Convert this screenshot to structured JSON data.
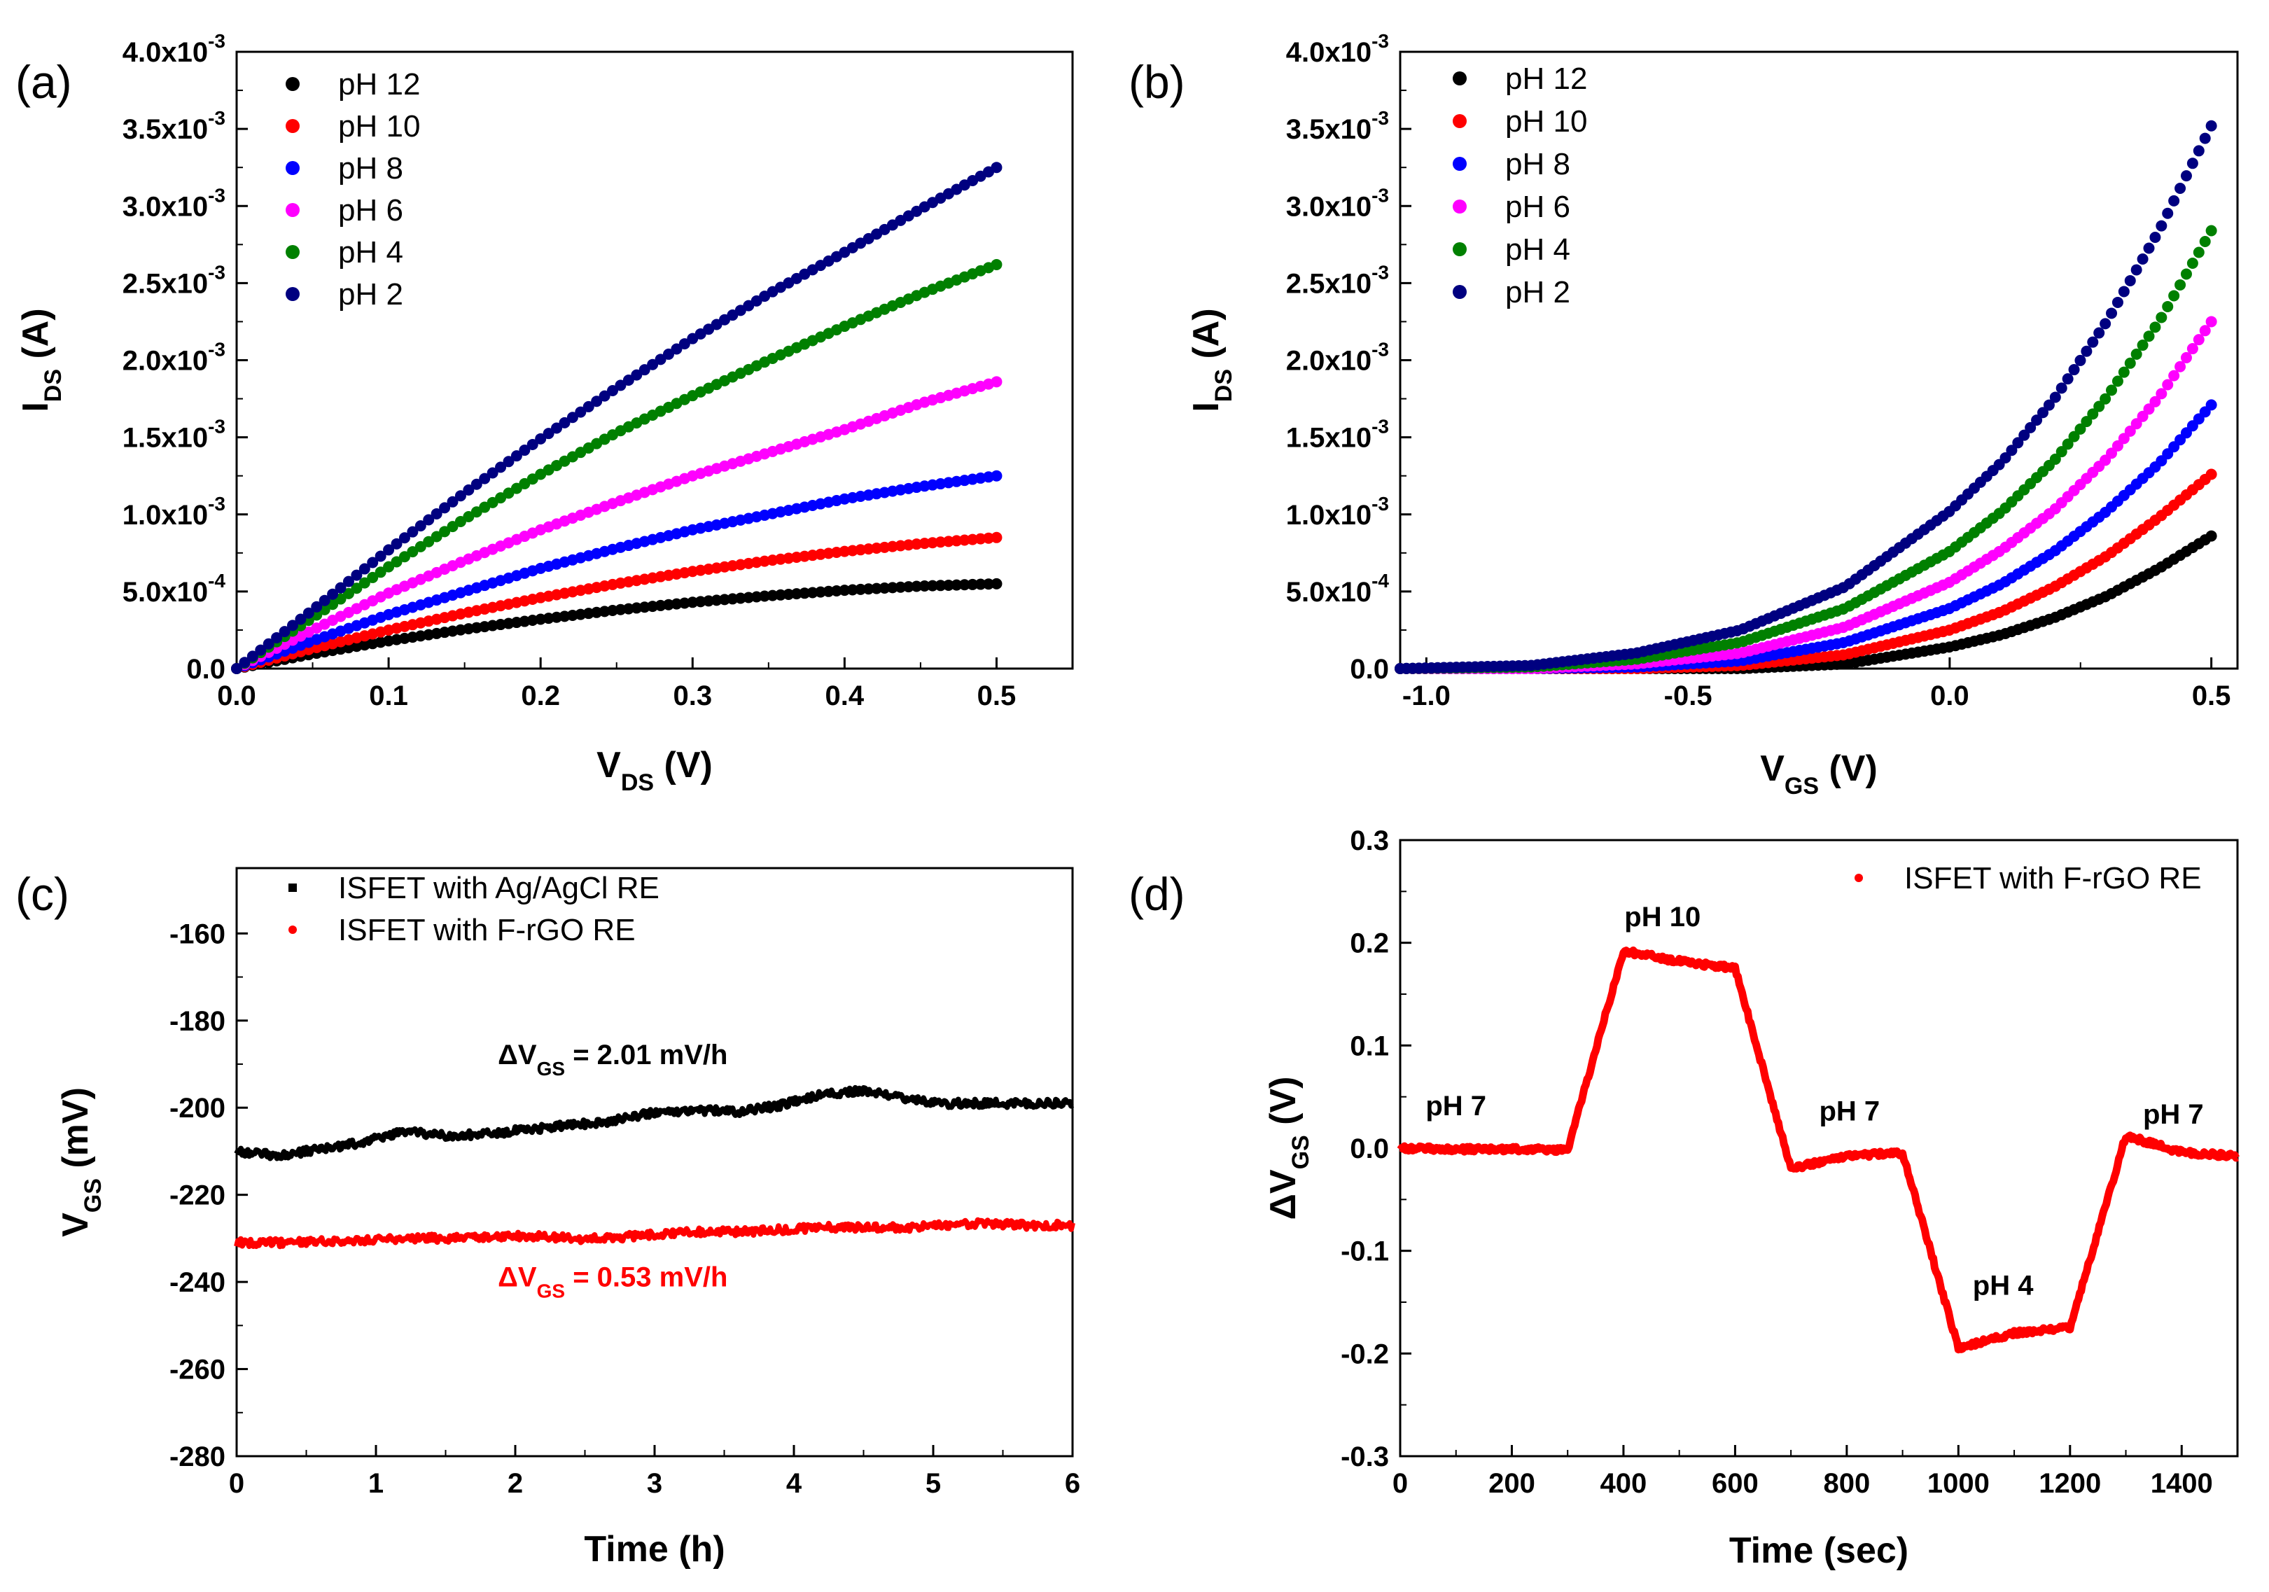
{
  "chart_data": [
    {
      "id": "a",
      "type": "scatter",
      "panel_label": "(a)",
      "xlabel": {
        "main": "V",
        "sub": "DS",
        "unit": " (V)"
      },
      "ylabel": {
        "main": "I",
        "sub": "DS",
        "unit": " (A)"
      },
      "xlim": [
        0.0,
        0.55
      ],
      "ylim": [
        0.0,
        0.004
      ],
      "x_ticks": [
        0.0,
        0.1,
        0.2,
        0.3,
        0.4,
        0.5
      ],
      "x_tick_labels": [
        "0.0",
        "0.1",
        "0.2",
        "0.3",
        "0.4",
        "0.5"
      ],
      "y_ticks": [
        0.0,
        0.0005,
        0.001,
        0.0015,
        0.002,
        0.0025,
        0.003,
        0.0035,
        0.004
      ],
      "y_tick_labels": [
        {
          "base": "0.0",
          "exp": ""
        },
        {
          "base": "5.0x10",
          "exp": "-4"
        },
        {
          "base": "1.0x10",
          "exp": "-3"
        },
        {
          "base": "1.5x10",
          "exp": "-3"
        },
        {
          "base": "2.0x10",
          "exp": "-3"
        },
        {
          "base": "2.5x10",
          "exp": "-3"
        },
        {
          "base": "3.0x10",
          "exp": "-3"
        },
        {
          "base": "3.5x10",
          "exp": "-3"
        },
        {
          "base": "4.0x10",
          "exp": "-3"
        }
      ],
      "legend_position": "top-left",
      "series": [
        {
          "name": "pH 12",
          "color": "#000000",
          "x": [
            0,
            0.05,
            0.1,
            0.15,
            0.2,
            0.25,
            0.3,
            0.35,
            0.4,
            0.45,
            0.5
          ],
          "y": [
            0,
            9.5e-05,
            0.00018,
            0.000255,
            0.00032,
            0.00038,
            0.00043,
            0.000472,
            0.000508,
            0.000535,
            0.00055
          ]
        },
        {
          "name": "pH 10",
          "color": "#ff0000",
          "x": [
            0,
            0.05,
            0.1,
            0.15,
            0.2,
            0.25,
            0.3,
            0.35,
            0.4,
            0.45,
            0.5
          ],
          "y": [
            0,
            0.00013,
            0.00025,
            0.00036,
            0.00046,
            0.00055,
            0.00063,
            0.0007,
            0.00076,
            0.00081,
            0.00085
          ]
        },
        {
          "name": "pH 8",
          "color": "#0000ff",
          "x": [
            0,
            0.05,
            0.1,
            0.15,
            0.2,
            0.25,
            0.3,
            0.35,
            0.4,
            0.45,
            0.5
          ],
          "y": [
            0,
            0.00018,
            0.00035,
            0.0005,
            0.00065,
            0.00078,
            0.0009,
            0.001,
            0.0011,
            0.00118,
            0.00125
          ]
        },
        {
          "name": "pH 6",
          "color": "#ff00ff",
          "x": [
            0,
            0.05,
            0.1,
            0.15,
            0.2,
            0.25,
            0.3,
            0.35,
            0.4,
            0.45,
            0.5
          ],
          "y": [
            0,
            0.00025,
            0.00049,
            0.0007,
            0.0009,
            0.00108,
            0.00125,
            0.0014,
            0.00155,
            0.00172,
            0.00186
          ]
        },
        {
          "name": "pH 4",
          "color": "#008000",
          "x": [
            0,
            0.05,
            0.1,
            0.15,
            0.2,
            0.25,
            0.3,
            0.35,
            0.4,
            0.45,
            0.5
          ],
          "y": [
            0,
            0.00033,
            0.00066,
            0.00097,
            0.00126,
            0.00153,
            0.00177,
            0.002,
            0.00222,
            0.00243,
            0.00262
          ]
        },
        {
          "name": "pH 2",
          "color": "#000080",
          "x": [
            0,
            0.05,
            0.1,
            0.15,
            0.2,
            0.25,
            0.3,
            0.35,
            0.4,
            0.45,
            0.5
          ],
          "y": [
            0,
            0.00038,
            0.00077,
            0.00114,
            0.00149,
            0.00182,
            0.00214,
            0.00243,
            0.0027,
            0.00298,
            0.00325
          ]
        }
      ]
    },
    {
      "id": "b",
      "type": "scatter",
      "panel_label": "(b)",
      "xlabel": {
        "main": "V",
        "sub": "GS",
        "unit": " (V)"
      },
      "ylabel": {
        "main": "I",
        "sub": "DS",
        "unit": " (A)"
      },
      "xlim": [
        -1.05,
        0.55
      ],
      "ylim": [
        0.0,
        0.004
      ],
      "x_ticks": [
        -1.0,
        -0.5,
        0.0,
        0.5
      ],
      "x_tick_labels": [
        "-1.0",
        "-0.5",
        "0.0",
        "0.5"
      ],
      "y_ticks": [
        0.0,
        0.0005,
        0.001,
        0.0015,
        0.002,
        0.0025,
        0.003,
        0.0035,
        0.004
      ],
      "y_tick_labels": [
        {
          "base": "0.0",
          "exp": ""
        },
        {
          "base": "5.0x10",
          "exp": "-4"
        },
        {
          "base": "1.0x10",
          "exp": "-3"
        },
        {
          "base": "1.5x10",
          "exp": "-3"
        },
        {
          "base": "2.0x10",
          "exp": "-3"
        },
        {
          "base": "2.5x10",
          "exp": "-3"
        },
        {
          "base": "3.0x10",
          "exp": "-3"
        },
        {
          "base": "3.5x10",
          "exp": "-3"
        },
        {
          "base": "4.0x10",
          "exp": "-3"
        }
      ],
      "legend_position": "top-left",
      "series": [
        {
          "name": "pH 12",
          "color": "#000000",
          "x": [
            -1.05,
            -0.8,
            -0.6,
            -0.4,
            -0.2,
            0.0,
            0.1,
            0.2,
            0.3,
            0.4,
            0.5
          ],
          "y": [
            0,
            0,
            0,
            0,
            3e-05,
            0.00014,
            0.00022,
            0.00033,
            0.00047,
            0.00065,
            0.00086
          ]
        },
        {
          "name": "pH 10",
          "color": "#ff0000",
          "x": [
            -1.05,
            -0.8,
            -0.6,
            -0.4,
            -0.2,
            0.0,
            0.1,
            0.2,
            0.3,
            0.4,
            0.5
          ],
          "y": [
            0,
            0,
            0,
            2e-05,
            9e-05,
            0.00025,
            0.00037,
            0.00053,
            0.00073,
            0.00098,
            0.00126
          ]
        },
        {
          "name": "pH 8",
          "color": "#0000ff",
          "x": [
            -1.05,
            -0.8,
            -0.6,
            -0.4,
            -0.2,
            0.0,
            0.1,
            0.2,
            0.3,
            0.4,
            0.5
          ],
          "y": [
            0,
            0,
            1e-05,
            5e-05,
            0.00017,
            0.00039,
            0.00055,
            0.00076,
            0.00102,
            0.00133,
            0.00171
          ]
        },
        {
          "name": "pH 6",
          "color": "#ff00ff",
          "x": [
            -1.05,
            -0.8,
            -0.6,
            -0.4,
            -0.2,
            0.0,
            0.1,
            0.2,
            0.3,
            0.4,
            0.5
          ],
          "y": [
            0,
            0,
            3e-05,
            0.0001,
            0.00027,
            0.00056,
            0.00077,
            0.00103,
            0.00136,
            0.00176,
            0.00225
          ]
        },
        {
          "name": "pH 4",
          "color": "#008000",
          "x": [
            -1.05,
            -0.8,
            -0.6,
            -0.4,
            -0.2,
            0.0,
            0.1,
            0.2,
            0.3,
            0.4,
            0.5
          ],
          "y": [
            0,
            1e-05,
            6e-05,
            0.00017,
            0.00039,
            0.00076,
            0.00102,
            0.00135,
            0.00176,
            0.00225,
            0.00284
          ]
        },
        {
          "name": "pH 2",
          "color": "#000080",
          "x": [
            -1.05,
            -0.8,
            -0.6,
            -0.4,
            -0.2,
            0.0,
            0.1,
            0.2,
            0.3,
            0.4,
            0.5
          ],
          "y": [
            0,
            2e-05,
            0.0001,
            0.00025,
            0.00053,
            0.00102,
            0.00134,
            0.00175,
            0.00225,
            0.00284,
            0.00352
          ]
        }
      ]
    },
    {
      "id": "c",
      "type": "line",
      "panel_label": "(c)",
      "xlabel": {
        "main": "Time (h)",
        "sub": "",
        "unit": ""
      },
      "ylabel": {
        "main": "V",
        "sub": "GS",
        "unit": " (mV)"
      },
      "xlim": [
        0,
        6
      ],
      "ylim": [
        -280,
        -145
      ],
      "x_ticks": [
        0,
        1,
        2,
        3,
        4,
        5,
        6
      ],
      "x_tick_labels": [
        "0",
        "1",
        "2",
        "3",
        "4",
        "5",
        "6"
      ],
      "y_ticks": [
        -280,
        -260,
        -240,
        -220,
        -200,
        -180,
        -160
      ],
      "y_tick_labels": [
        {
          "base": "-280",
          "exp": ""
        },
        {
          "base": "-260",
          "exp": ""
        },
        {
          "base": "-240",
          "exp": ""
        },
        {
          "base": "-220",
          "exp": ""
        },
        {
          "base": "-200",
          "exp": ""
        },
        {
          "base": "-180",
          "exp": ""
        },
        {
          "base": "-160",
          "exp": ""
        }
      ],
      "legend_position": "top-left",
      "series": [
        {
          "name": "ISFET with Ag/AgCl RE",
          "color": "#000000",
          "marker": "square",
          "x": [
            0,
            0.3,
            0.6,
            0.9,
            1.2,
            1.5,
            1.8,
            2.1,
            2.4,
            2.7,
            3.0,
            3.3,
            3.6,
            3.9,
            4.2,
            4.5,
            4.8,
            5.1,
            5.4,
            5.7,
            6.0
          ],
          "y": [
            -210,
            -211,
            -209.5,
            -208,
            -205.5,
            -206.5,
            -206,
            -205,
            -204,
            -203,
            -201,
            -200.5,
            -201,
            -199.5,
            -197,
            -196,
            -198,
            -199,
            -199,
            -199,
            -199
          ]
        },
        {
          "name": "ISFET with F-rGO RE",
          "color": "#ff0000",
          "marker": "circle",
          "x": [
            0,
            0.3,
            0.6,
            0.9,
            1.2,
            1.5,
            1.8,
            2.1,
            2.4,
            2.7,
            3.0,
            3.3,
            3.6,
            3.9,
            4.2,
            4.5,
            4.8,
            5.1,
            5.4,
            5.7,
            6.0
          ],
          "y": [
            -231,
            -231,
            -230.5,
            -230.5,
            -230,
            -230,
            -229.5,
            -229.5,
            -230,
            -230,
            -229,
            -228.5,
            -228.5,
            -228,
            -227.5,
            -227.5,
            -227.5,
            -227,
            -226.5,
            -227,
            -227
          ]
        }
      ],
      "annotations": [
        {
          "main": "ΔV",
          "sub": "GS",
          "rest": " = 2.01 mV/h",
          "color": "#000000",
          "at": [
            2.7,
            -190
          ]
        },
        {
          "main": "ΔV",
          "sub": "GS",
          "rest": " = 0.53 mV/h",
          "color": "#ff0000",
          "at": [
            2.7,
            -241
          ]
        }
      ]
    },
    {
      "id": "d",
      "type": "line",
      "panel_label": "(d)",
      "xlabel": {
        "main": "Time (sec)",
        "sub": "",
        "unit": ""
      },
      "ylabel": {
        "main": "ΔV",
        "sub": "GS",
        "unit": " (V)"
      },
      "xlim": [
        0,
        1500
      ],
      "ylim": [
        -0.3,
        0.3
      ],
      "x_ticks": [
        0,
        200,
        400,
        600,
        800,
        1000,
        1200,
        1400
      ],
      "x_tick_labels": [
        "0",
        "200",
        "400",
        "600",
        "800",
        "1000",
        "1200",
        "1400"
      ],
      "y_ticks": [
        -0.3,
        -0.2,
        -0.1,
        0.0,
        0.1,
        0.2,
        0.3
      ],
      "y_tick_labels": [
        {
          "base": "-0.3",
          "exp": ""
        },
        {
          "base": "-0.2",
          "exp": ""
        },
        {
          "base": "-0.1",
          "exp": ""
        },
        {
          "base": "0.0",
          "exp": ""
        },
        {
          "base": "0.1",
          "exp": ""
        },
        {
          "base": "0.2",
          "exp": ""
        },
        {
          "base": "0.3",
          "exp": ""
        }
      ],
      "legend_position": "top-right",
      "series": [
        {
          "name": "ISFET with F-rGO RE",
          "color": "#ff0000",
          "marker": "circle",
          "x": [
            0,
            100,
            200,
            300,
            400,
            500,
            600,
            700,
            800,
            900,
            1000,
            1100,
            1200,
            1300,
            1400,
            1500
          ],
          "y": [
            0.0,
            -0.001,
            -0.001,
            -0.002,
            0.192,
            0.182,
            0.175,
            -0.02,
            -0.007,
            -0.005,
            -0.195,
            -0.18,
            -0.175,
            0.012,
            -0.004,
            -0.008
          ]
        }
      ],
      "annotations": [
        {
          "main": "pH 7",
          "sub": "",
          "rest": "",
          "color": "#000000",
          "at": [
            100,
            0.032
          ]
        },
        {
          "main": "pH 10",
          "sub": "",
          "rest": "",
          "color": "#000000",
          "at": [
            470,
            0.216
          ]
        },
        {
          "main": "pH 7",
          "sub": "",
          "rest": "",
          "color": "#000000",
          "at": [
            805,
            0.027
          ]
        },
        {
          "main": "pH 4",
          "sub": "",
          "rest": "",
          "color": "#000000",
          "at": [
            1080,
            -0.143
          ]
        },
        {
          "main": "pH 7",
          "sub": "",
          "rest": "",
          "color": "#000000",
          "at": [
            1385,
            0.024
          ]
        }
      ]
    }
  ]
}
